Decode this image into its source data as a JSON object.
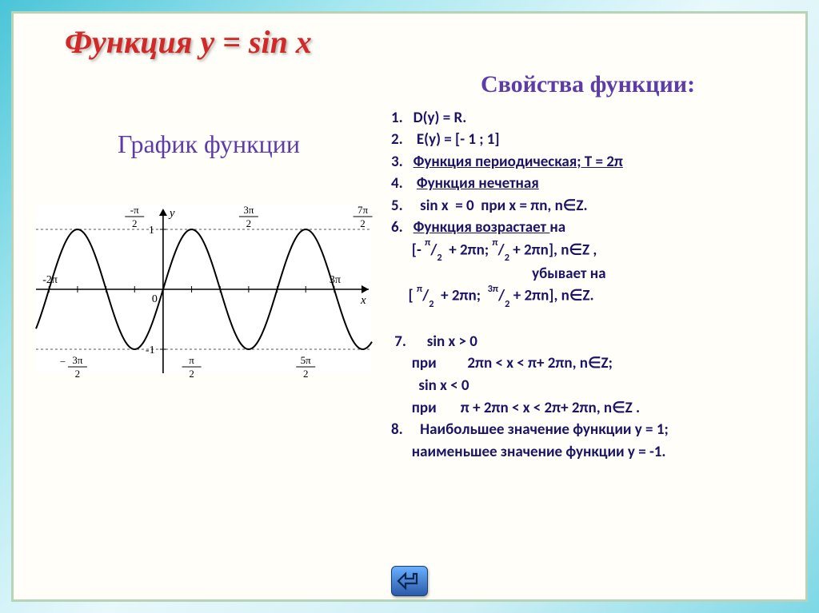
{
  "colors": {
    "title_red": "#d22828",
    "purple": "#5d3ca9",
    "dark_navy": "#1b1464",
    "border": "#b8d4b8",
    "nav_blue": "#2a5aa8"
  },
  "title": "Функция   y = sin x",
  "left": {
    "graph_title": "График функции",
    "graph": {
      "type": "line",
      "function": "sin",
      "xlim": [
        -7.0,
        11.5
      ],
      "ylim": [
        -1.4,
        1.4
      ],
      "amplitude": 1,
      "period": 6.2832,
      "envelope_lines": [
        1,
        -1
      ],
      "envelope_dash": "3,3",
      "axis_color": "#000000",
      "curve_color": "#000000",
      "curve_width": 2,
      "x_tick_labels_top": [
        "-π/2",
        "3π/2",
        "7π/2"
      ],
      "x_tick_labels_bottom": [
        "-3π/2",
        "π/2",
        "5π/2"
      ],
      "x_tick_labels_axis_left": "-2π",
      "x_tick_labels_axis_right": "3π",
      "y_ticks": [
        -1,
        1
      ],
      "y_label": "y",
      "x_label": "x",
      "origin_label": "0",
      "background_color": "#ffffff",
      "font_family": "serif",
      "font_size_pt": 12
    }
  },
  "right": {
    "section_title": "Свойства функции:",
    "properties": [
      {
        "n": "1.",
        "text": "D(y) = R."
      },
      {
        "n": "2.",
        "text": " E(y) = [- 1 ; 1]"
      },
      {
        "n": "3.",
        "html": "<span class='und'>Функция периодическая; T = 2π</span>"
      },
      {
        "n": "4.",
        "html": " <span class='und'>Функция нечетная</span>"
      },
      {
        "n": "5.",
        "html": "  sin x  = 0  при x = πn, n∈Z."
      },
      {
        "n": "6.",
        "html": "<span class='und'>Функция возрастает </span>на"
      },
      {
        "n": "",
        "html": "      [- <sup>π</sup>/<sub>2</sub>  + 2πn; <sup>π</sup>/<sub>2</sub> + 2πn], n∈Z ,"
      },
      {
        "n": "",
        "html": "                                         убывает на"
      },
      {
        "n": "",
        "html": "     [ <sup>π</sup>/<sub>2</sub>  + 2πn;  <sup>3π</sup>/<sub>2</sub> + 2πn], n∈Z."
      },
      {
        "n": "",
        "html": " "
      },
      {
        "n": " 7.",
        "html": "   sin x > 0"
      },
      {
        "n": "",
        "html": "      при         2πn < x < π+ 2πn, n∈Z;"
      },
      {
        "n": "",
        "html": "        sin x < 0"
      },
      {
        "n": "",
        "html": "      при       π + 2πn < x < 2π+ 2πn, n∈Z ."
      },
      {
        "n": "8.",
        "html": "  Наибольшее значение функции у = 1;"
      },
      {
        "n": "",
        "html": "      наименьшее значение функции у = -1."
      }
    ]
  },
  "nav": {
    "icon": "back-arrow"
  }
}
